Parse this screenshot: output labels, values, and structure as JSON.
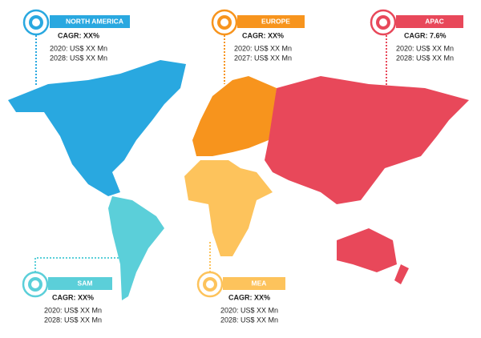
{
  "regions": [
    {
      "name": "NORTH AMERICA",
      "cagr": "CAGR: XX%",
      "line1": "2020: US$  XX Mn",
      "line2": "2028: US$  XX Mn"
    },
    {
      "name": "EUROPE",
      "cagr": "CAGR: XX%",
      "line1": "2020: US$  XX Mn",
      "line2": "2027: US$  XX Mn"
    },
    {
      "name": "APAC",
      "cagr": "CAGR: 7.6%",
      "line1": "2020: US$  XX Mn",
      "line2": "2028: US$  XX   Mn"
    },
    {
      "name": "SAM",
      "cagr": "CAGR: XX%",
      "line1": "2020: US$  XX  Mn",
      "line2": "2028: US$  XX Mn"
    },
    {
      "name": "MEA",
      "cagr": "CAGR: XX%",
      "line1": "2020: US$  XX Mn",
      "line2": "2028: US$  XX Mn"
    }
  ]
}
